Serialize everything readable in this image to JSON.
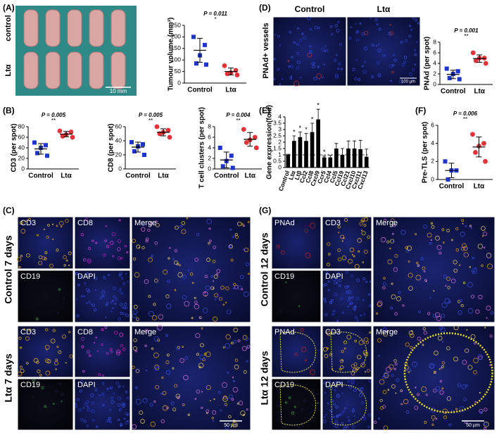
{
  "chart_data": [
    {
      "type": "strip",
      "ylabel": "Tumour volume (mm³)",
      "categories": [
        "Control",
        "Ltα"
      ],
      "groups": [
        {
          "color": "#1f35c8",
          "marker": "square",
          "values": [
            200,
            165,
            120,
            85,
            80
          ],
          "mean": 142,
          "sd": 52
        },
        {
          "color": "#e53238",
          "marker": "circle",
          "values": [
            75,
            55,
            45,
            40,
            35
          ],
          "mean": 50,
          "sd": 15
        }
      ],
      "ylim": [
        0,
        250
      ],
      "yticks": [
        0,
        50,
        100,
        150,
        200,
        250
      ],
      "p_value": "P = 0.011",
      "significance": "*"
    },
    {
      "type": "strip",
      "ylabel": "CD3 (per spot)",
      "categories": [
        "Control",
        "Ltα"
      ],
      "groups": [
        {
          "color": "#1f35c8",
          "marker": "square",
          "values": [
            50,
            45,
            40,
            30,
            25
          ],
          "mean": 38,
          "sd": 10
        },
        {
          "color": "#e53238",
          "marker": "circle",
          "values": [
            72,
            70,
            65,
            62,
            60
          ],
          "mean": 66,
          "sd": 5
        }
      ],
      "ylim": [
        0,
        80
      ],
      "yticks": [
        0,
        20,
        40,
        60,
        80
      ],
      "p_value": "P = 0.005",
      "significance": "**"
    },
    {
      "type": "strip",
      "ylabel": "CD8 (per spot)",
      "categories": [
        "Control",
        "Ltα"
      ],
      "groups": [
        {
          "color": "#1f35c8",
          "marker": "square",
          "values": [
            38,
            35,
            32,
            25,
            20
          ],
          "mean": 31,
          "sd": 7
        },
        {
          "color": "#e53238",
          "marker": "circle",
          "values": [
            60,
            55,
            52,
            50,
            45
          ],
          "mean": 52,
          "sd": 5
        }
      ],
      "ylim": [
        0,
        60
      ],
      "yticks": [
        0,
        20,
        40,
        60
      ],
      "p_value": "P = 0.005",
      "significance": "**"
    },
    {
      "type": "strip",
      "ylabel": "T cell clusters (per spot)",
      "categories": [
        "Control",
        "Ltα"
      ],
      "groups": [
        {
          "color": "#1f35c8",
          "marker": "square",
          "values": [
            4,
            2.5,
            1.5,
            0.5,
            0.2
          ],
          "mean": 1.7,
          "sd": 1.5
        },
        {
          "color": "#e53238",
          "marker": "circle",
          "values": [
            7.5,
            6,
            5.5,
            5,
            4
          ],
          "mean": 5.6,
          "sd": 1.3
        }
      ],
      "ylim": [
        0,
        8
      ],
      "yticks": [
        0,
        2,
        4,
        6,
        8
      ],
      "p_value": "P = 0.004",
      "significance": "**"
    },
    {
      "type": "strip",
      "ylabel": "PNAd (per spot)",
      "categories": [
        "Control",
        "Ltα"
      ],
      "groups": [
        {
          "color": "#1f35c8",
          "marker": "square",
          "values": [
            3,
            2.5,
            2,
            1.2,
            1
          ],
          "mean": 1.9,
          "sd": 0.8
        },
        {
          "color": "#e53238",
          "marker": "circle",
          "values": [
            6,
            5,
            5,
            4.5,
            4
          ],
          "mean": 4.9,
          "sd": 0.7
        }
      ],
      "ylim": [
        0,
        8
      ],
      "yticks": [
        0,
        2,
        4,
        6,
        8
      ],
      "p_value": "P = 0.001",
      "significance": "**"
    },
    {
      "type": "bar",
      "ylabel": "Gene expression(fold)",
      "categories": [
        "Control",
        "Ltα",
        "Ltβ",
        "Ccl2",
        "Ccl8",
        "Cxcl9",
        "Ccr5",
        "Ccl4",
        "Ccl5",
        "Ccl19",
        "Ccl21",
        "Cxcl10",
        "Cxcl11",
        "Cxcl13"
      ],
      "values": [
        1,
        2.1,
        2.4,
        2.1,
        2.8,
        3.8,
        0.8,
        0.8,
        1.5,
        1.0,
        1.5,
        1.5,
        1.45,
        0.85
      ],
      "errors": [
        0.05,
        0.4,
        0.4,
        0.6,
        0.7,
        0.8,
        0.1,
        0.15,
        0.4,
        0.5,
        0.6,
        0.6,
        0.7,
        0.6
      ],
      "color": "#000000",
      "reference_line": 1,
      "annotations": [
        {
          "category": "Ltα",
          "text": "*"
        },
        {
          "category": "Ltβ",
          "text": "*"
        },
        {
          "category": "Ccl2",
          "text": "*"
        },
        {
          "category": "Ccl8",
          "text": "*"
        },
        {
          "category": "Cxcl9",
          "text": "*"
        },
        {
          "category": "Ccr5",
          "text": "*"
        }
      ],
      "ylim": [
        0,
        4
      ],
      "yticks": [
        0,
        0.5,
        1,
        1.5,
        2,
        2.5,
        3,
        3.5,
        4
      ]
    },
    {
      "type": "strip",
      "ylabel": "Pre-TLS (per spot)",
      "categories": [
        "Control",
        "Ltα"
      ],
      "groups": [
        {
          "color": "#1f35c8",
          "marker": "square",
          "values": [
            2,
            1,
            1,
            0
          ],
          "mean": 1,
          "sd": 0.8
        },
        {
          "color": "#e53238",
          "marker": "circle",
          "values": [
            5,
            4,
            3.7,
            3,
            2
          ],
          "mean": 3.6,
          "sd": 1.1
        }
      ],
      "ylim": [
        0,
        6
      ],
      "yticks": [
        0,
        2,
        4,
        6
      ],
      "p_value": "P = 0.006",
      "significance": "**"
    }
  ],
  "figure": {
    "panel_labels": [
      "(A)",
      "(B)",
      "(C)",
      "(D)",
      "(E)",
      "(F)",
      "(G)"
    ],
    "a_photo": {
      "row_labels": [
        "control",
        "Ltα"
      ],
      "scale_bar": "10 mm"
    },
    "c_images": {
      "top": {
        "channels": [
          "CD3",
          "CD8",
          "Merge",
          "CD19",
          "DAPI"
        ],
        "group": "Control 7 days"
      },
      "bottom": {
        "channels": [
          "CD3",
          "CD8",
          "Merge",
          "CD19",
          "DAPI"
        ],
        "group": "Ltα  7 days"
      },
      "scale_bar": "50 µm"
    },
    "d_images": {
      "columns": [
        "Control",
        "Ltα"
      ],
      "row_label": "PNAd+ vessels",
      "scale_bar": "100 µm"
    },
    "g_images": {
      "top": {
        "channels": [
          "PNAd",
          "CD3",
          "Merge",
          "CD19",
          "DAPI"
        ],
        "group": "Control 12 days"
      },
      "bottom": {
        "channels": [
          "PNAd",
          "CD3",
          "Merge",
          "CD19",
          "DAPI"
        ],
        "group": "Ltα  12 days"
      },
      "scale_bar": "50 µm"
    }
  }
}
